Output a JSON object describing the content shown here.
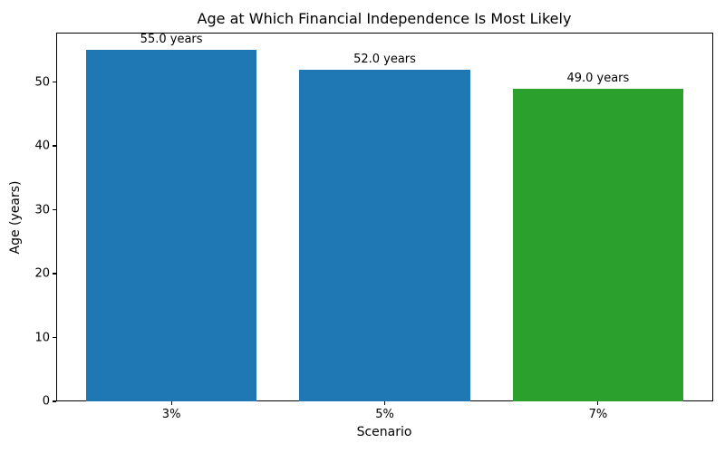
{
  "chart_data": {
    "type": "bar",
    "title": "Age at Which Financial Independence Is Most Likely",
    "xlabel": "Scenario",
    "ylabel": "Age (years)",
    "categories": [
      "3%",
      "5%",
      "7%"
    ],
    "values": [
      55.0,
      52.0,
      49.0
    ],
    "bar_labels": [
      "55.0 years",
      "52.0 years",
      "49.0 years"
    ],
    "bar_colors": [
      "#1f77b4",
      "#1f77b4",
      "#2ca02c"
    ],
    "ylim": [
      0,
      57.75
    ],
    "yticks": [
      0,
      10,
      20,
      30,
      40,
      50
    ],
    "grid": false,
    "legend_position": "none",
    "background_color": "#ffffff",
    "spine_color": "#000000"
  }
}
